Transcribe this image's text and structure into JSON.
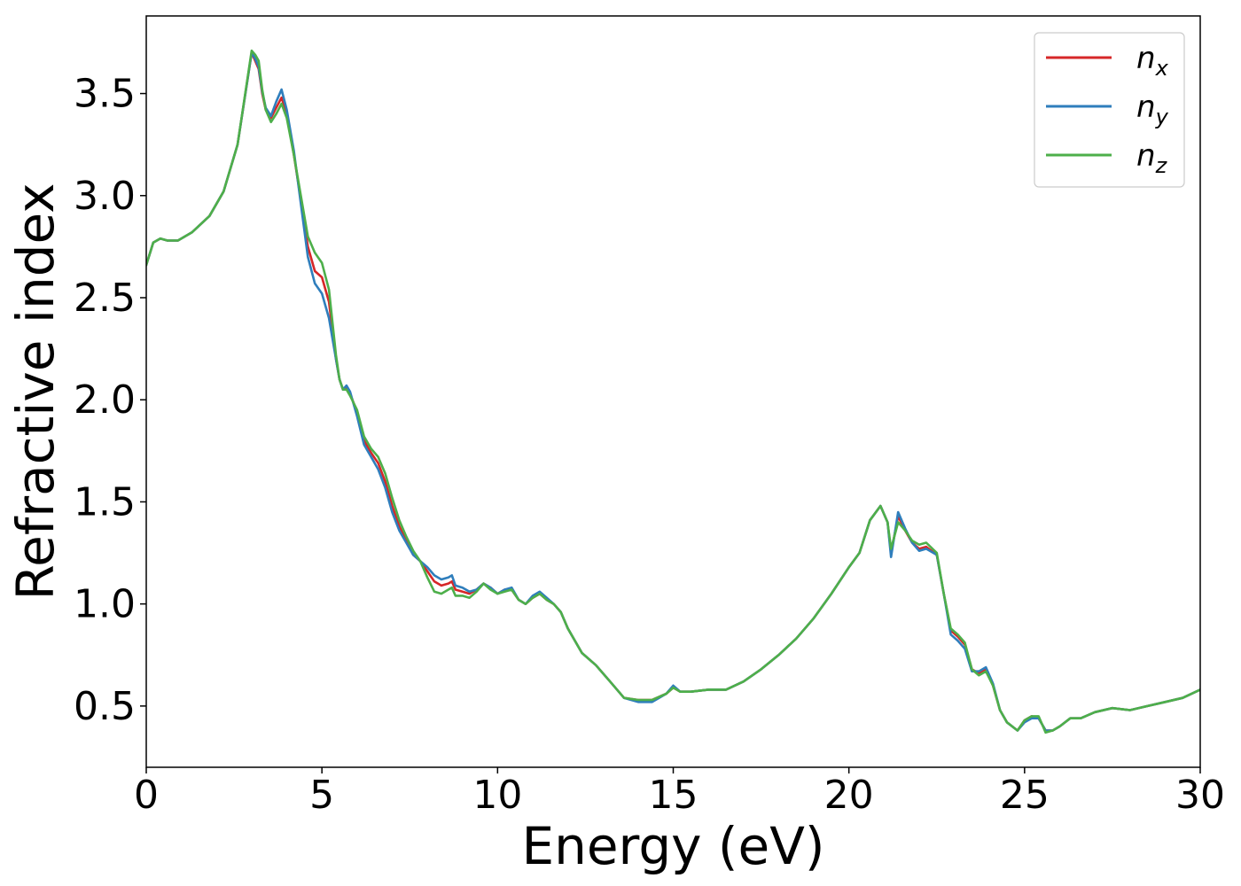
{
  "chart_data": {
    "type": "line",
    "title": "",
    "xlabel": "Energy (eV)",
    "ylabel": "Refractive index",
    "xlim": [
      0,
      30
    ],
    "ylim": [
      0.2,
      3.88
    ],
    "xticks": [
      0,
      5,
      10,
      15,
      20,
      25,
      30
    ],
    "yticks": [
      0.5,
      1.0,
      1.5,
      2.0,
      2.5,
      3.0,
      3.5
    ],
    "grid": false,
    "legend_position": "top-right",
    "series": [
      {
        "name": "n",
        "sub": "x",
        "color": "#d62728",
        "x": [
          0,
          0.2,
          0.4,
          0.6,
          0.9,
          1.3,
          1.8,
          2.2,
          2.6,
          3.0,
          3.1,
          3.2,
          3.3,
          3.4,
          3.55,
          3.7,
          3.85,
          4.0,
          4.2,
          4.4,
          4.6,
          4.8,
          5.0,
          5.2,
          5.4,
          5.5,
          5.6,
          5.7,
          5.8,
          6.0,
          6.2,
          6.4,
          6.6,
          6.8,
          7.0,
          7.2,
          7.4,
          7.6,
          7.8,
          8.0,
          8.2,
          8.4,
          8.6,
          8.7,
          8.8,
          9.0,
          9.2,
          9.4,
          9.6,
          9.8,
          10.0,
          10.2,
          10.4,
          10.6,
          10.8,
          11.0,
          11.2,
          11.4,
          11.6,
          11.8,
          12.0,
          12.4,
          12.8,
          13.2,
          13.6,
          14.0,
          14.4,
          14.8,
          15.0,
          15.2,
          15.5,
          16.0,
          16.5,
          17.0,
          17.5,
          18.0,
          18.5,
          19.0,
          19.5,
          20.0,
          20.3,
          20.6,
          20.9,
          21.1,
          21.2,
          21.4,
          21.6,
          21.8,
          22.0,
          22.2,
          22.5,
          22.7,
          22.9,
          23.1,
          23.3,
          23.5,
          23.7,
          23.9,
          24.1,
          24.3,
          24.5,
          24.8,
          25.0,
          25.2,
          25.4,
          25.6,
          25.8,
          26.0,
          26.3,
          26.6,
          27.0,
          27.5,
          28.0,
          28.5,
          29.0,
          29.5,
          30.0
        ],
        "y": [
          2.66,
          2.77,
          2.79,
          2.78,
          2.78,
          2.82,
          2.9,
          3.02,
          3.25,
          3.7,
          3.66,
          3.62,
          3.5,
          3.42,
          3.38,
          3.43,
          3.48,
          3.4,
          3.2,
          2.98,
          2.75,
          2.63,
          2.6,
          2.48,
          2.2,
          2.1,
          2.05,
          2.06,
          2.03,
          1.94,
          1.8,
          1.74,
          1.69,
          1.6,
          1.48,
          1.38,
          1.31,
          1.24,
          1.21,
          1.16,
          1.11,
          1.09,
          1.1,
          1.11,
          1.07,
          1.06,
          1.05,
          1.07,
          1.1,
          1.08,
          1.05,
          1.07,
          1.07,
          1.02,
          1.0,
          1.03,
          1.05,
          1.02,
          1.0,
          0.96,
          0.88,
          0.76,
          0.7,
          0.62,
          0.54,
          0.53,
          0.53,
          0.56,
          0.59,
          0.57,
          0.57,
          0.58,
          0.58,
          0.62,
          0.68,
          0.75,
          0.83,
          0.93,
          1.05,
          1.18,
          1.25,
          1.41,
          1.48,
          1.4,
          1.25,
          1.43,
          1.36,
          1.3,
          1.27,
          1.28,
          1.24,
          1.05,
          0.87,
          0.84,
          0.8,
          0.68,
          0.66,
          0.68,
          0.6,
          0.48,
          0.42,
          0.38,
          0.43,
          0.45,
          0.44,
          0.38,
          0.38,
          0.4,
          0.44,
          0.44,
          0.47,
          0.49,
          0.48,
          0.5,
          0.52,
          0.54,
          0.58
        ]
      },
      {
        "name": "n",
        "sub": "y",
        "color": "#2f7ebc",
        "x": [
          0,
          0.2,
          0.4,
          0.6,
          0.9,
          1.3,
          1.8,
          2.2,
          2.6,
          3.0,
          3.1,
          3.2,
          3.3,
          3.4,
          3.55,
          3.7,
          3.85,
          4.0,
          4.2,
          4.4,
          4.6,
          4.8,
          5.0,
          5.2,
          5.4,
          5.5,
          5.6,
          5.7,
          5.8,
          6.0,
          6.2,
          6.4,
          6.6,
          6.8,
          7.0,
          7.2,
          7.4,
          7.6,
          7.8,
          8.0,
          8.2,
          8.4,
          8.6,
          8.7,
          8.8,
          9.0,
          9.2,
          9.4,
          9.6,
          9.8,
          10.0,
          10.2,
          10.4,
          10.6,
          10.8,
          11.0,
          11.2,
          11.4,
          11.6,
          11.8,
          12.0,
          12.4,
          12.8,
          13.2,
          13.6,
          14.0,
          14.4,
          14.8,
          15.0,
          15.2,
          15.5,
          16.0,
          16.5,
          17.0,
          17.5,
          18.0,
          18.5,
          19.0,
          19.5,
          20.0,
          20.3,
          20.6,
          20.9,
          21.1,
          21.2,
          21.4,
          21.6,
          21.8,
          22.0,
          22.2,
          22.5,
          22.7,
          22.9,
          23.1,
          23.3,
          23.5,
          23.7,
          23.9,
          24.1,
          24.3,
          24.5,
          24.8,
          25.0,
          25.2,
          25.4,
          25.6,
          25.8,
          26.0,
          26.3,
          26.6,
          27.0,
          27.5,
          28.0,
          28.5,
          29.0,
          29.5,
          30.0
        ],
        "y": [
          2.66,
          2.77,
          2.79,
          2.78,
          2.78,
          2.82,
          2.9,
          3.02,
          3.25,
          3.7,
          3.67,
          3.63,
          3.51,
          3.43,
          3.39,
          3.46,
          3.52,
          3.42,
          3.22,
          2.96,
          2.7,
          2.57,
          2.52,
          2.4,
          2.2,
          2.1,
          2.05,
          2.07,
          2.04,
          1.92,
          1.78,
          1.72,
          1.66,
          1.57,
          1.45,
          1.36,
          1.3,
          1.24,
          1.21,
          1.18,
          1.14,
          1.12,
          1.13,
          1.14,
          1.09,
          1.08,
          1.06,
          1.07,
          1.1,
          1.08,
          1.05,
          1.07,
          1.08,
          1.02,
          1.0,
          1.04,
          1.06,
          1.03,
          1.0,
          0.96,
          0.88,
          0.76,
          0.7,
          0.62,
          0.54,
          0.52,
          0.52,
          0.56,
          0.6,
          0.57,
          0.57,
          0.58,
          0.58,
          0.62,
          0.68,
          0.75,
          0.83,
          0.93,
          1.05,
          1.18,
          1.25,
          1.41,
          1.48,
          1.4,
          1.23,
          1.45,
          1.37,
          1.3,
          1.26,
          1.27,
          1.24,
          1.05,
          0.85,
          0.82,
          0.78,
          0.67,
          0.67,
          0.69,
          0.61,
          0.48,
          0.42,
          0.38,
          0.42,
          0.44,
          0.44,
          0.38,
          0.38,
          0.4,
          0.44,
          0.44,
          0.47,
          0.49,
          0.48,
          0.5,
          0.52,
          0.54,
          0.58
        ]
      },
      {
        "name": "n",
        "sub": "z",
        "color": "#4daf4a",
        "x": [
          0,
          0.2,
          0.4,
          0.6,
          0.9,
          1.3,
          1.8,
          2.2,
          2.6,
          3.0,
          3.1,
          3.2,
          3.3,
          3.4,
          3.55,
          3.7,
          3.85,
          4.0,
          4.2,
          4.4,
          4.6,
          4.8,
          5.0,
          5.2,
          5.4,
          5.5,
          5.6,
          5.7,
          5.8,
          6.0,
          6.2,
          6.4,
          6.6,
          6.8,
          7.0,
          7.2,
          7.4,
          7.6,
          7.8,
          8.0,
          8.2,
          8.4,
          8.6,
          8.7,
          8.8,
          9.0,
          9.2,
          9.4,
          9.6,
          9.8,
          10.0,
          10.2,
          10.4,
          10.6,
          10.8,
          11.0,
          11.2,
          11.4,
          11.6,
          11.8,
          12.0,
          12.4,
          12.8,
          13.2,
          13.6,
          14.0,
          14.4,
          14.8,
          15.0,
          15.2,
          15.5,
          16.0,
          16.5,
          17.0,
          17.5,
          18.0,
          18.5,
          19.0,
          19.5,
          20.0,
          20.3,
          20.6,
          20.9,
          21.1,
          21.2,
          21.4,
          21.6,
          21.8,
          22.0,
          22.2,
          22.5,
          22.7,
          22.9,
          23.1,
          23.3,
          23.5,
          23.7,
          23.9,
          24.1,
          24.3,
          24.5,
          24.8,
          25.0,
          25.2,
          25.4,
          25.6,
          25.8,
          26.0,
          26.3,
          26.6,
          27.0,
          27.5,
          28.0,
          28.5,
          29.0,
          29.5,
          30.0
        ],
        "y": [
          2.66,
          2.77,
          2.79,
          2.78,
          2.78,
          2.82,
          2.9,
          3.02,
          3.25,
          3.71,
          3.69,
          3.66,
          3.52,
          3.42,
          3.36,
          3.4,
          3.45,
          3.38,
          3.2,
          3.0,
          2.8,
          2.72,
          2.67,
          2.54,
          2.22,
          2.1,
          2.05,
          2.05,
          2.02,
          1.95,
          1.82,
          1.76,
          1.72,
          1.64,
          1.52,
          1.41,
          1.33,
          1.26,
          1.21,
          1.13,
          1.06,
          1.05,
          1.07,
          1.08,
          1.04,
          1.04,
          1.03,
          1.06,
          1.1,
          1.07,
          1.05,
          1.06,
          1.07,
          1.02,
          1.0,
          1.03,
          1.05,
          1.02,
          1.0,
          0.96,
          0.88,
          0.76,
          0.7,
          0.62,
          0.54,
          0.53,
          0.53,
          0.56,
          0.59,
          0.57,
          0.57,
          0.58,
          0.58,
          0.62,
          0.68,
          0.75,
          0.83,
          0.93,
          1.05,
          1.18,
          1.25,
          1.41,
          1.48,
          1.4,
          1.27,
          1.4,
          1.36,
          1.31,
          1.29,
          1.3,
          1.25,
          1.05,
          0.88,
          0.85,
          0.81,
          0.68,
          0.65,
          0.67,
          0.6,
          0.48,
          0.42,
          0.38,
          0.43,
          0.45,
          0.45,
          0.37,
          0.38,
          0.4,
          0.44,
          0.44,
          0.47,
          0.49,
          0.48,
          0.5,
          0.52,
          0.54,
          0.58
        ]
      }
    ]
  }
}
